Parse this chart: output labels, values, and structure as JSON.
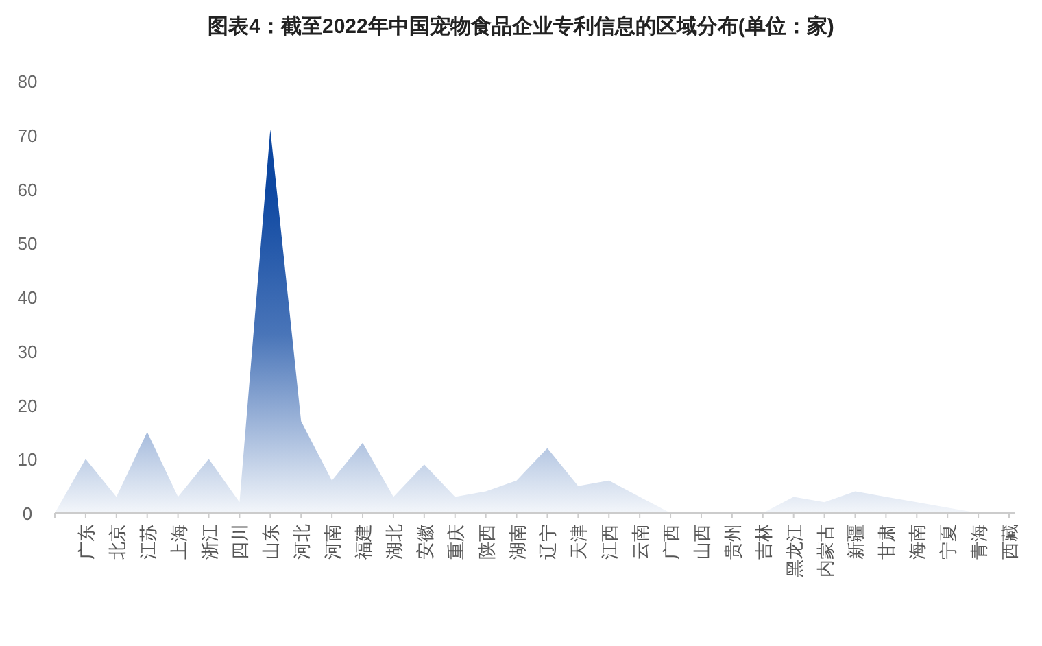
{
  "chart_data": {
    "type": "area",
    "title": "图表4：截至2022年中国宠物食品企业专利信息的区域分布(单位：家)",
    "categories": [
      null,
      "广东",
      "北京",
      "江苏",
      "上海",
      "浙江",
      "四川",
      "山东",
      "河北",
      "河南",
      "福建",
      "湖北",
      "安徽",
      "重庆",
      "陕西",
      "湖南",
      "辽宁",
      "天津",
      "江西",
      "云南",
      "广西",
      "山西",
      "贵州",
      "吉林",
      "黑龙江",
      "内蒙古",
      "新疆",
      "甘肃",
      "海南",
      "宁夏",
      "青海",
      "西藏"
    ],
    "series": [
      {
        "color": "#0d47a1",
        "values": [
          0,
          10,
          3,
          15,
          3,
          10,
          2,
          71,
          17,
          6,
          13,
          3,
          9,
          3,
          4,
          6,
          12,
          5,
          6,
          3,
          0,
          0,
          0,
          0,
          3,
          2,
          4,
          3,
          2,
          1,
          0,
          0
        ]
      }
    ],
    "ylim": [
      0,
      80
    ],
    "yticks": [
      0,
      10,
      20,
      30,
      40,
      50,
      60,
      70,
      80
    ]
  }
}
